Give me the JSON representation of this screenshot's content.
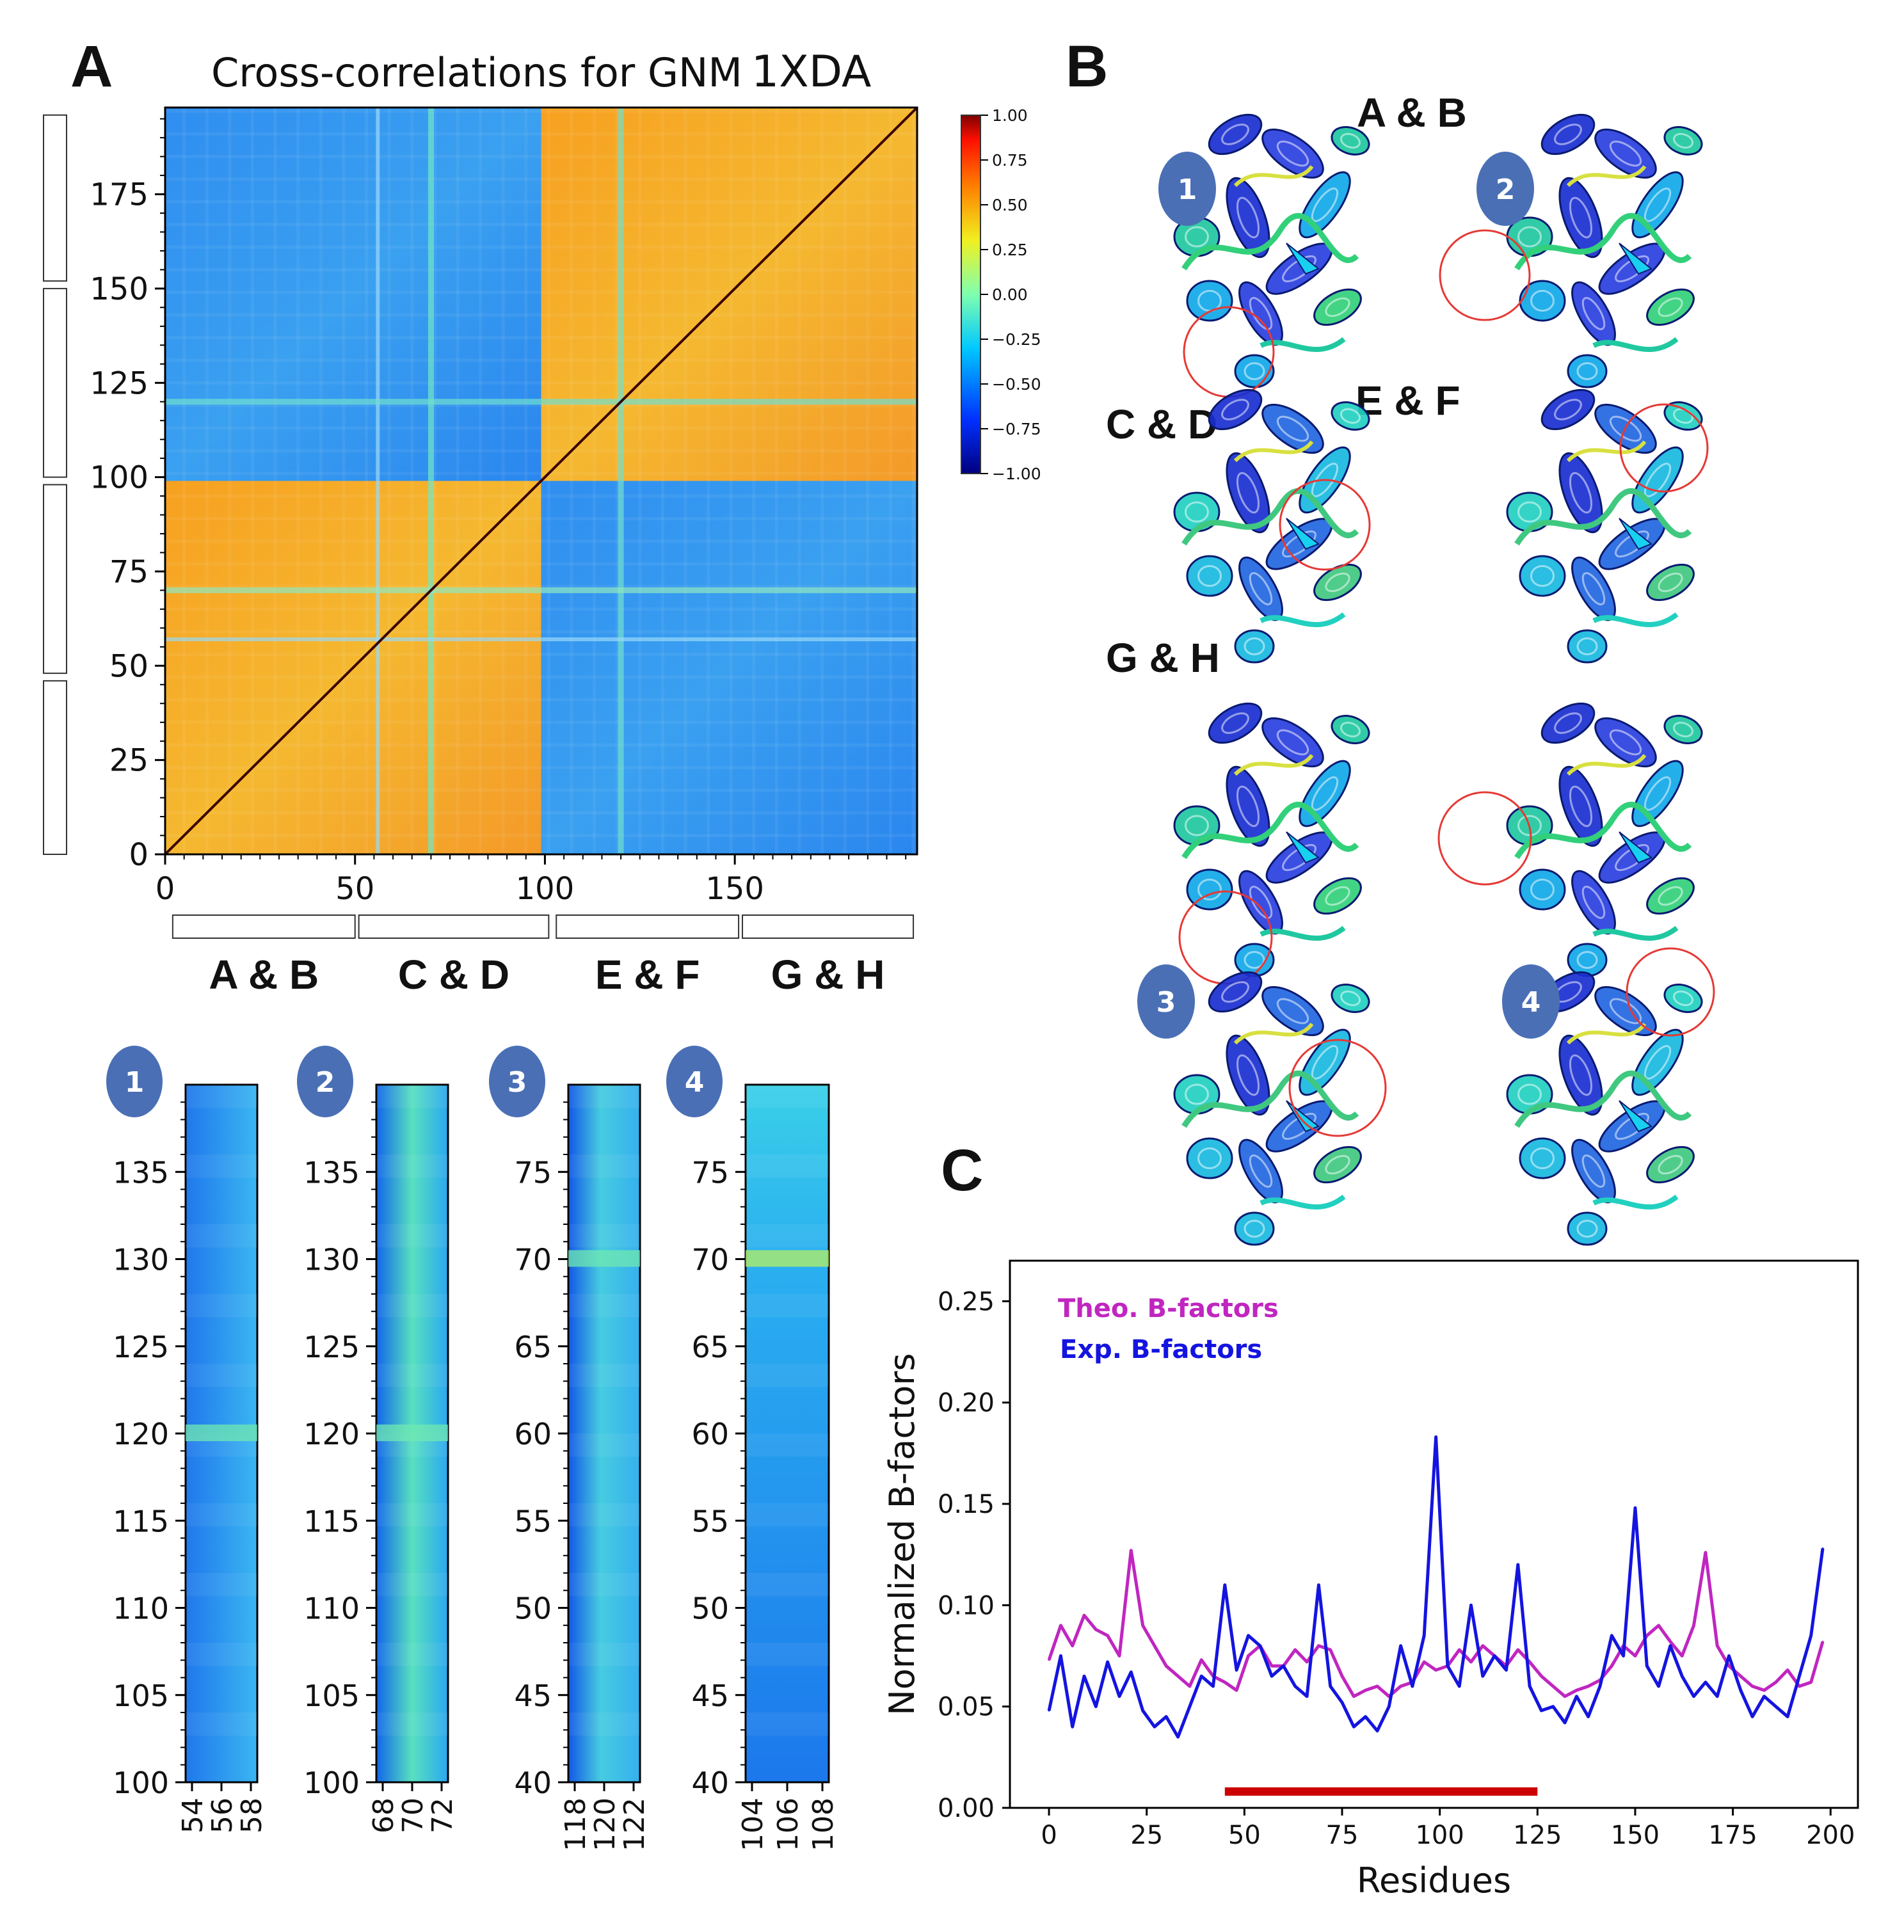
{
  "panels": {
    "a_label": "A",
    "b_label": "B",
    "c_label": "C"
  },
  "heatmap": {
    "title": "Cross-correlations for GNM 1XDA",
    "title_main": "Cross-correlations for GNM",
    "title_id": "1XDA",
    "x_ticks": [
      "0",
      "50",
      "100",
      "150"
    ],
    "y_ticks": [
      "0",
      "25",
      "50",
      "75",
      "100",
      "125",
      "150",
      "175"
    ],
    "group_labels": [
      "A & B",
      "C & D",
      "E & F",
      "G & H"
    ],
    "colorbar_ticks": [
      "1.00",
      "0.75",
      "0.50",
      "0.25",
      "0.00",
      "−0.25",
      "−0.50",
      "−0.75",
      "−1.00"
    ],
    "colors": {
      "low": "#00008b",
      "mid": "#7fffd4",
      "high": "#ff8c00",
      "top": "#8b0000"
    }
  },
  "structures": {
    "labels": [
      "A & B",
      "C & D",
      "E & F",
      "G & H"
    ],
    "badges": [
      "1",
      "2",
      "3",
      "4"
    ],
    "circle_color": "#e53935",
    "badge_color": "#4a6fb5"
  },
  "strips": [
    {
      "badge": "1",
      "y_ticks": [
        "100",
        "105",
        "110",
        "115",
        "120",
        "125",
        "130",
        "135"
      ],
      "x_ticks": [
        "54",
        "56",
        "58"
      ]
    },
    {
      "badge": "2",
      "y_ticks": [
        "100",
        "105",
        "110",
        "115",
        "120",
        "125",
        "130",
        "135"
      ],
      "x_ticks": [
        "68",
        "70",
        "72"
      ]
    },
    {
      "badge": "3",
      "y_ticks": [
        "40",
        "45",
        "50",
        "55",
        "60",
        "65",
        "70",
        "75"
      ],
      "x_ticks": [
        "118",
        "120",
        "122"
      ]
    },
    {
      "badge": "4",
      "y_ticks": [
        "40",
        "45",
        "50",
        "55",
        "60",
        "65",
        "70",
        "75"
      ],
      "x_ticks": [
        "104",
        "106",
        "108"
      ]
    }
  ],
  "chart_data": [
    {
      "type": "heatmap",
      "title": "Cross-correlations for GNM 1XDA",
      "xlim": [
        0,
        198
      ],
      "ylim": [
        0,
        198
      ],
      "vmin": -1.0,
      "vmax": 1.0,
      "blocks": [
        {
          "x": [
            0,
            99
          ],
          "y": [
            0,
            99
          ],
          "value": 0.55
        },
        {
          "x": [
            99,
            198
          ],
          "y": [
            99,
            198
          ],
          "value": 0.55
        },
        {
          "x": [
            0,
            99
          ],
          "y": [
            99,
            198
          ],
          "value": -0.45
        },
        {
          "x": [
            99,
            198
          ],
          "y": [
            0,
            99
          ],
          "value": -0.45
        }
      ],
      "diagonal_value": 1.0
    },
    {
      "type": "line",
      "xlabel": "Residues",
      "ylabel": "Normalized B-factors",
      "xlim": [
        -10,
        207
      ],
      "ylim": [
        0.0,
        0.27
      ],
      "x_ticks": [
        0,
        25,
        50,
        75,
        100,
        125,
        150,
        175,
        200
      ],
      "y_ticks": [
        0.0,
        0.05,
        0.1,
        0.15,
        0.2,
        0.25
      ],
      "y_tick_labels": [
        "0.00",
        "0.05",
        "0.10",
        "0.15",
        "0.20",
        "0.25"
      ],
      "x_tick_labels": [
        "0",
        "25",
        "50",
        "75",
        "100",
        "125",
        "150",
        "175",
        "200"
      ],
      "highlight_range": [
        45,
        125
      ],
      "series": [
        {
          "name": "Theo. B-factors",
          "color": "#c026c0",
          "x": [
            0,
            3,
            6,
            9,
            12,
            15,
            18,
            21,
            24,
            27,
            30,
            33,
            36,
            39,
            42,
            45,
            48,
            51,
            54,
            57,
            60,
            63,
            66,
            69,
            72,
            75,
            78,
            81,
            84,
            87,
            90,
            93,
            96,
            99,
            102,
            105,
            108,
            111,
            114,
            117,
            120,
            123,
            126,
            129,
            132,
            135,
            138,
            141,
            144,
            147,
            150,
            153,
            156,
            159,
            162,
            165,
            168,
            171,
            174,
            177,
            180,
            183,
            186,
            189,
            192,
            195,
            198
          ],
          "values": [
            0.073,
            0.09,
            0.08,
            0.095,
            0.088,
            0.085,
            0.075,
            0.127,
            0.09,
            0.08,
            0.07,
            0.065,
            0.06,
            0.073,
            0.065,
            0.062,
            0.058,
            0.075,
            0.08,
            0.07,
            0.07,
            0.078,
            0.072,
            0.08,
            0.078,
            0.065,
            0.055,
            0.058,
            0.06,
            0.055,
            0.06,
            0.062,
            0.072,
            0.068,
            0.07,
            0.078,
            0.072,
            0.08,
            0.075,
            0.07,
            0.078,
            0.072,
            0.065,
            0.06,
            0.055,
            0.058,
            0.06,
            0.063,
            0.07,
            0.08,
            0.075,
            0.085,
            0.09,
            0.082,
            0.075,
            0.09,
            0.126,
            0.08,
            0.07,
            0.065,
            0.06,
            0.058,
            0.062,
            0.068,
            0.06,
            0.062,
            0.082
          ]
        },
        {
          "name": "Exp. B-factors",
          "color": "#1414e0",
          "x": [
            0,
            3,
            6,
            9,
            12,
            15,
            18,
            21,
            24,
            27,
            30,
            33,
            36,
            39,
            42,
            45,
            48,
            51,
            54,
            57,
            60,
            63,
            66,
            69,
            72,
            75,
            78,
            81,
            84,
            87,
            90,
            93,
            96,
            99,
            102,
            105,
            108,
            111,
            114,
            117,
            120,
            123,
            126,
            129,
            132,
            135,
            138,
            141,
            144,
            147,
            150,
            153,
            156,
            159,
            162,
            165,
            168,
            171,
            174,
            177,
            180,
            183,
            186,
            189,
            192,
            195,
            198
          ],
          "values": [
            0.048,
            0.075,
            0.04,
            0.065,
            0.05,
            0.072,
            0.055,
            0.067,
            0.048,
            0.04,
            0.045,
            0.035,
            0.05,
            0.065,
            0.06,
            0.11,
            0.068,
            0.085,
            0.08,
            0.065,
            0.07,
            0.06,
            0.055,
            0.11,
            0.06,
            0.052,
            0.04,
            0.045,
            0.038,
            0.05,
            0.08,
            0.06,
            0.085,
            0.183,
            0.07,
            0.06,
            0.1,
            0.065,
            0.075,
            0.068,
            0.12,
            0.06,
            0.048,
            0.05,
            0.042,
            0.055,
            0.045,
            0.06,
            0.085,
            0.075,
            0.148,
            0.07,
            0.06,
            0.08,
            0.065,
            0.055,
            0.062,
            0.055,
            0.075,
            0.058,
            0.045,
            0.055,
            0.05,
            0.045,
            0.065,
            0.085,
            0.128
          ]
        }
      ]
    }
  ]
}
